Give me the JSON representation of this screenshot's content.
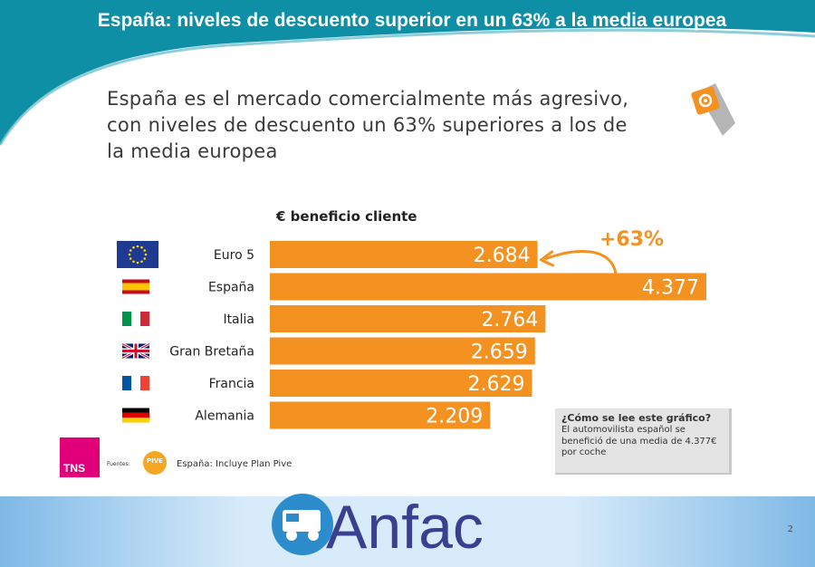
{
  "slide": {
    "title": "España: niveles de descuento superior en un 63% a la media europea",
    "subtitle": "España es el mercado comercialmente más agresivo, con niveles de descuento un 63% superiores a los de la media europea",
    "page_number": "2",
    "colors": {
      "header_teal": "#0e8fa6",
      "bar_orange": "#f39221",
      "magenta": "#e2007a",
      "footer_blue": "#bcd9f1"
    }
  },
  "chart_data": {
    "type": "bar",
    "orientation": "horizontal",
    "title": "€ beneficio cliente",
    "categories": [
      "Euro 5",
      "España",
      "Italia",
      "Gran Bretaña",
      "Francia",
      "Alemania"
    ],
    "values": [
      2684,
      4377,
      2764,
      2659,
      2629,
      2209
    ],
    "value_labels": [
      "2.684",
      "4.377",
      "2.764",
      "2.659",
      "2.629",
      "2.209"
    ],
    "flags": [
      "eu-flag-icon",
      "spain-flag-icon",
      "italy-flag-icon",
      "uk-flag-icon",
      "france-flag-icon",
      "germany-flag-icon"
    ],
    "annotation": "+63%",
    "xlim": [
      0,
      4377
    ]
  },
  "note": {
    "heading": "¿Cómo se lee este gráfico?",
    "body": "El automovilista español se benefició de una media de 4.377€ por coche"
  },
  "source": {
    "tns_logo": "TNS",
    "label": "Fuentes:",
    "logo_text": "PIVE",
    "footnote": "España: Incluye Plan Pive"
  },
  "footer": {
    "logo_text": "Anfac"
  }
}
